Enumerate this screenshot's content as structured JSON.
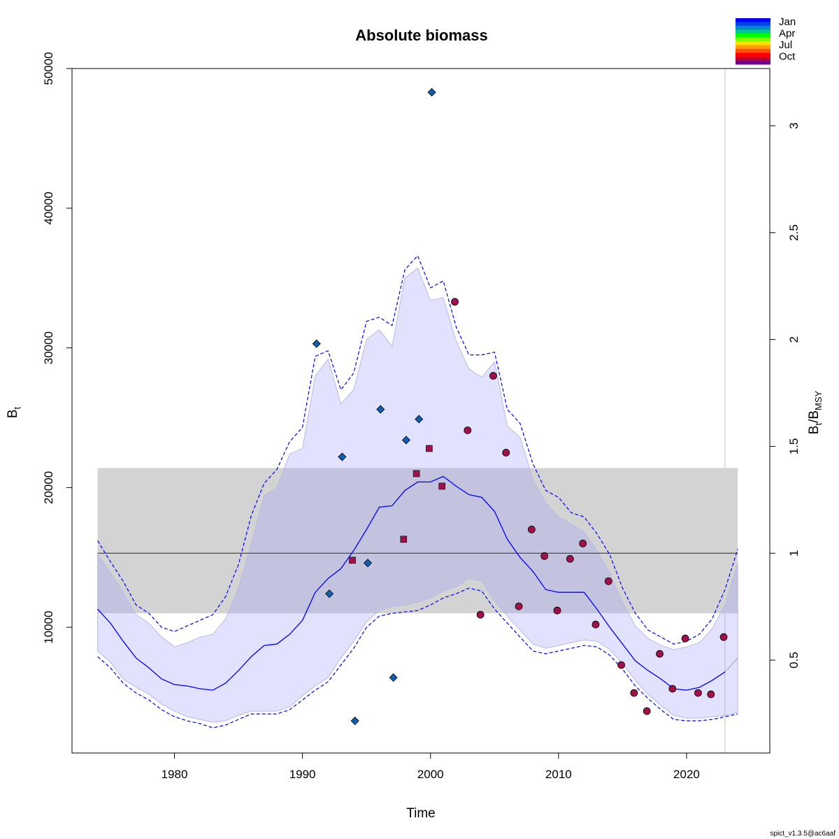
{
  "chart_data": {
    "type": "line",
    "title": "Absolute biomass",
    "xlabel": "Time",
    "ylabel": "B",
    "ylabel_sub": "t",
    "y2label_main": "B",
    "y2label_sub1": "t",
    "y2label_sep": "/B",
    "y2label_sub2": "MSY",
    "xlim": [
      1972,
      2026.5
    ],
    "ylim": [
      1000,
      50000
    ],
    "xticks": [
      1980,
      1990,
      2000,
      2010,
      2020
    ],
    "yticks": [
      10000,
      20000,
      30000,
      40000,
      50000
    ],
    "bmsy": 15300,
    "y2ticks": [
      0.5,
      1,
      1.5,
      2,
      2.5,
      3
    ],
    "bmsy_band": [
      11000,
      21400
    ],
    "band_x": [
      1974,
      2024
    ],
    "vline_x": 2023,
    "version_label": "spict_v1.3.5@ac6aaf",
    "legend": {
      "labels": [
        "Jan",
        "Apr",
        "Jul",
        "Oct"
      ],
      "colors": [
        "#0000FF",
        "#0047E6",
        "#008CC8",
        "#00C88C",
        "#00FF00",
        "#80FF00",
        "#FFE000",
        "#FFA000",
        "#FF5000",
        "#FF0000",
        "#C00030",
        "#700090"
      ]
    },
    "series": [
      {
        "name": "B estimate",
        "color": "#0000FF",
        "x": [
          1974,
          1975,
          1976,
          1977,
          1978,
          1979,
          1980,
          1981,
          1982,
          1983,
          1984,
          1985,
          1986,
          1987,
          1988,
          1989,
          1990,
          1991,
          1992,
          1993,
          1994,
          1995,
          1996,
          1997,
          1998,
          1999,
          2000,
          2001,
          2002,
          2003,
          2004,
          2005,
          2006,
          2007,
          2008,
          2009,
          2010,
          2011,
          2012,
          2013,
          2014,
          2015,
          2016,
          2017,
          2018,
          2019,
          2020,
          2021,
          2022,
          2023
        ],
        "y": [
          11300,
          10300,
          9000,
          7800,
          7100,
          6300,
          5900,
          5800,
          5600,
          5500,
          6000,
          6900,
          7900,
          8700,
          8800,
          9500,
          10500,
          12500,
          13500,
          14200,
          15500,
          17000,
          18600,
          18700,
          19800,
          20400,
          20400,
          20800,
          20100,
          19500,
          19300,
          18300,
          16300,
          15000,
          14000,
          12700,
          12500,
          12500,
          12500,
          11300,
          10000,
          8800,
          7600,
          6900,
          6300,
          5600,
          5500,
          5700,
          6200,
          6800
        ]
      },
      {
        "name": "Projection",
        "color": "#0000FF",
        "x": [
          2023,
          2024
        ],
        "y": [
          6800,
          7800
        ]
      },
      {
        "name": "Upper CI",
        "color": "#0000FF",
        "x": [
          1974,
          1975,
          1976,
          1977,
          1978,
          1979,
          1980,
          1981,
          1982,
          1983,
          1984,
          1985,
          1986,
          1987,
          1988,
          1989,
          1990,
          1991,
          1992,
          1993,
          1994,
          1995,
          1996,
          1997,
          1998,
          1999,
          2000,
          2001,
          2002,
          2003,
          2004,
          2005,
          2006,
          2007,
          2008,
          2009,
          2010,
          2011,
          2012,
          2013,
          2014,
          2015,
          2016,
          2017,
          2018,
          2019,
          2020,
          2021,
          2022,
          2023,
          2024
        ],
        "y": [
          16200,
          14700,
          13300,
          11600,
          11000,
          10000,
          9700,
          10100,
          10500,
          10900,
          12200,
          14500,
          18000,
          20300,
          21300,
          23300,
          24300,
          29400,
          29800,
          27000,
          28200,
          31900,
          32200,
          31600,
          35600,
          36600,
          34300,
          34800,
          31500,
          29500,
          29500,
          29700,
          25600,
          24600,
          21700,
          19800,
          19300,
          18200,
          17900,
          16700,
          15200,
          12800,
          11000,
          9800,
          9300,
          8800,
          9000,
          9500,
          10600,
          12700,
          15600
        ]
      },
      {
        "name": "Lower CI",
        "color": "#0000FF",
        "x": [
          1974,
          1975,
          1976,
          1977,
          1978,
          1979,
          1980,
          1981,
          1982,
          1983,
          1984,
          1985,
          1986,
          1987,
          1988,
          1989,
          1990,
          1991,
          1992,
          1993,
          1994,
          1995,
          1996,
          1997,
          1998,
          1999,
          2000,
          2001,
          2002,
          2003,
          2004,
          2005,
          2006,
          2007,
          2008,
          2009,
          2010,
          2011,
          2012,
          2013,
          2014,
          2015,
          2016,
          2017,
          2018,
          2019,
          2020,
          2021,
          2022,
          2023,
          2024
        ],
        "y": [
          7900,
          7100,
          6000,
          5300,
          4800,
          4100,
          3600,
          3300,
          3100,
          2800,
          3000,
          3400,
          3800,
          3800,
          3800,
          4100,
          4800,
          5500,
          6100,
          7300,
          8500,
          10000,
          10800,
          11000,
          11100,
          11200,
          11600,
          12100,
          12400,
          12800,
          12600,
          11300,
          10300,
          9300,
          8300,
          8100,
          8300,
          8500,
          8700,
          8600,
          8000,
          7000,
          5800,
          4900,
          4100,
          3400,
          3300,
          3300,
          3400,
          3600,
          3800
        ]
      },
      {
        "name": "Fill upper",
        "color": "#9999DD",
        "x": [
          1974,
          1975,
          1976,
          1977,
          1978,
          1979,
          1980,
          1981,
          1982,
          1983,
          1984,
          1985,
          1986,
          1987,
          1988,
          1989,
          1990,
          1991,
          1992,
          1993,
          1994,
          1995,
          1996,
          1997,
          1998,
          1999,
          2000,
          2001,
          2002,
          2003,
          2004,
          2005,
          2006,
          2007,
          2008,
          2009,
          2010,
          2011,
          2012,
          2013,
          2014,
          2015,
          2016,
          2017,
          2018,
          2019,
          2020,
          2021,
          2022,
          2023,
          2024
        ],
        "y": [
          15200,
          13900,
          12500,
          10900,
          10300,
          9300,
          8600,
          8900,
          9300,
          9500,
          10600,
          12800,
          16000,
          19400,
          20000,
          22400,
          22800,
          28000,
          29200,
          26000,
          27000,
          30600,
          31300,
          30100,
          35000,
          35700,
          33400,
          33600,
          30500,
          28500,
          27900,
          29000,
          24400,
          23600,
          20600,
          18900,
          17900,
          17400,
          16800,
          15500,
          13900,
          11800,
          10100,
          9200,
          8700,
          8400,
          8600,
          8900,
          9900,
          11600,
          14600
        ]
      },
      {
        "name": "Fill lower",
        "color": "#9999DD",
        "x": [
          1974,
          1975,
          1976,
          1977,
          1978,
          1979,
          1980,
          1981,
          1982,
          1983,
          1984,
          1985,
          1986,
          1987,
          1988,
          1989,
          1990,
          1991,
          1992,
          1993,
          1994,
          1995,
          1996,
          1997,
          1998,
          1999,
          2000,
          2001,
          2002,
          2003,
          2004,
          2005,
          2006,
          2007,
          2008,
          2009,
          2010,
          2011,
          2012,
          2013,
          2014,
          2015,
          2016,
          2017,
          2018,
          2019,
          2020,
          2021,
          2022,
          2023,
          2024
        ],
        "y": [
          8300,
          7500,
          6300,
          5700,
          5200,
          4500,
          4000,
          3600,
          3400,
          3200,
          3300,
          3700,
          4000,
          4000,
          4000,
          4300,
          5100,
          5800,
          6400,
          7800,
          9000,
          10400,
          11200,
          11500,
          11600,
          11800,
          12100,
          12600,
          12900,
          13500,
          13300,
          11900,
          10800,
          9800,
          8800,
          8500,
          8700,
          8900,
          9100,
          9000,
          8400,
          7400,
          6200,
          5200,
          4400,
          3700,
          3500,
          3500,
          3600,
          3700,
          3900
        ]
      }
    ],
    "obs_index1": {
      "marker": "diamond",
      "color": "#1060B0",
      "x": [
        1991.1,
        1992.1,
        1993.1,
        1994.1,
        1995.1,
        1996.1,
        1997.1,
        1998.1,
        1999.1,
        2000.1
      ],
      "y": [
        30300,
        12400,
        22200,
        3300,
        14600,
        25600,
        6400,
        23400,
        24900,
        48300
      ]
    },
    "obs_index2": {
      "marker": "square",
      "color": "#A0104A",
      "x": [
        1993.9,
        1997.9,
        1998.9,
        1999.9,
        2000.9
      ],
      "y": [
        14800,
        16300,
        21000,
        22800,
        20100
      ]
    },
    "obs_index3": {
      "marker": "circle",
      "color": "#A0104A",
      "x": [
        2001.9,
        2002.9,
        2003.9,
        2004.9,
        2005.9,
        2006.9,
        2007.9,
        2008.9,
        2009.9,
        2010.9,
        2011.9,
        2012.9,
        2013.9,
        2014.9,
        2015.9,
        2016.9,
        2017.9,
        2018.9,
        2019.9,
        2020.9,
        2021.9,
        2022.9
      ],
      "y": [
        33300,
        24100,
        10900,
        28000,
        22500,
        11500,
        17000,
        15100,
        11200,
        14900,
        16000,
        10200,
        13300,
        7300,
        5300,
        4000,
        8100,
        5600,
        9200,
        5300,
        5200,
        9300
      ]
    }
  }
}
